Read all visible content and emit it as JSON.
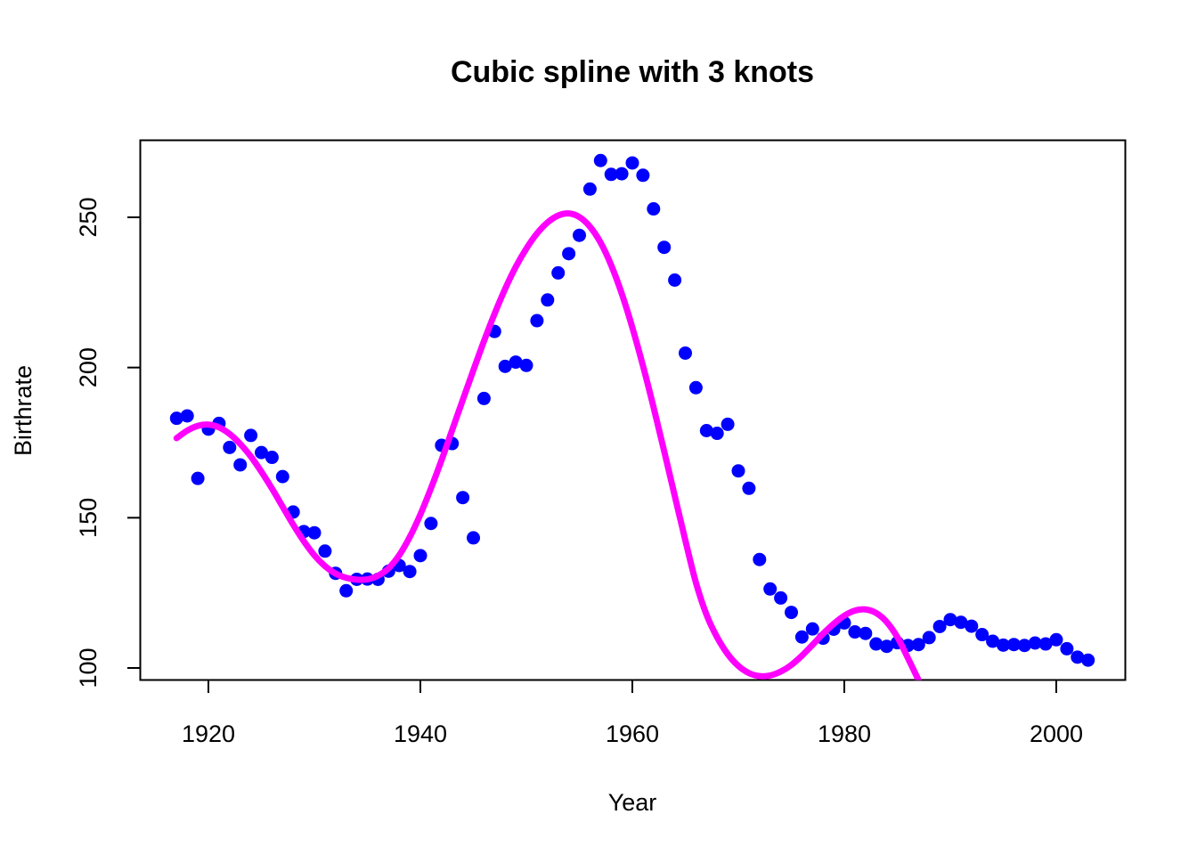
{
  "chart_data": {
    "type": "scatter",
    "title": "Cubic spline with 3 knots",
    "xlabel": "Year",
    "ylabel": "Birthrate",
    "xlim": [
      1917,
      2003
    ],
    "ylim": [
      100,
      268
    ],
    "x_ticks": [
      1920,
      1940,
      1960,
      1980,
      2000
    ],
    "y_ticks": [
      100,
      150,
      200,
      250
    ],
    "x_tick_labels": [
      "1920",
      "1940",
      "1960",
      "1980",
      "2000"
    ],
    "y_tick_labels": [
      "100",
      "150",
      "200",
      "250"
    ],
    "grid": false,
    "legend": "none",
    "series": [
      {
        "type": "scatter",
        "color": "#0000ff",
        "points": [
          [
            1917,
            183.1
          ],
          [
            1918,
            183.9
          ],
          [
            1919,
            163.1
          ],
          [
            1920,
            179.5
          ],
          [
            1921,
            181.4
          ],
          [
            1922,
            173.4
          ],
          [
            1923,
            167.6
          ],
          [
            1924,
            177.4
          ],
          [
            1925,
            171.7
          ],
          [
            1926,
            170.1
          ],
          [
            1927,
            163.7
          ],
          [
            1928,
            151.9
          ],
          [
            1929,
            145.4
          ],
          [
            1930,
            145.0
          ],
          [
            1931,
            138.9
          ],
          [
            1932,
            131.5
          ],
          [
            1933,
            125.7
          ],
          [
            1934,
            129.5
          ],
          [
            1935,
            129.6
          ],
          [
            1936,
            129.5
          ],
          [
            1937,
            132.2
          ],
          [
            1938,
            134.1
          ],
          [
            1939,
            132.1
          ],
          [
            1940,
            137.4
          ],
          [
            1941,
            148.1
          ],
          [
            1942,
            174.1
          ],
          [
            1943,
            174.7
          ],
          [
            1944,
            156.7
          ],
          [
            1945,
            143.3
          ],
          [
            1946,
            189.7
          ],
          [
            1947,
            212.0
          ],
          [
            1948,
            200.4
          ],
          [
            1949,
            201.8
          ],
          [
            1950,
            200.7
          ],
          [
            1951,
            215.6
          ],
          [
            1952,
            222.5
          ],
          [
            1953,
            231.5
          ],
          [
            1954,
            237.9
          ],
          [
            1955,
            244.0
          ],
          [
            1956,
            259.4
          ],
          [
            1957,
            268.9
          ],
          [
            1958,
            264.3
          ],
          [
            1959,
            264.5
          ],
          [
            1960,
            268.1
          ],
          [
            1961,
            264.0
          ],
          [
            1962,
            252.8
          ],
          [
            1963,
            240.0
          ],
          [
            1964,
            229.1
          ],
          [
            1965,
            204.8
          ],
          [
            1966,
            193.3
          ],
          [
            1967,
            179.0
          ],
          [
            1968,
            178.1
          ],
          [
            1969,
            181.1
          ],
          [
            1970,
            165.6
          ],
          [
            1971,
            159.8
          ],
          [
            1972,
            136.1
          ],
          [
            1973,
            126.3
          ],
          [
            1974,
            123.3
          ],
          [
            1975,
            118.5
          ],
          [
            1976,
            110.3
          ],
          [
            1977,
            113.0
          ],
          [
            1978,
            109.9
          ],
          [
            1979,
            112.9
          ],
          [
            1980,
            115.0
          ],
          [
            1981,
            112.0
          ],
          [
            1982,
            111.5
          ],
          [
            1983,
            108.0
          ],
          [
            1984,
            107.2
          ],
          [
            1985,
            108.4
          ],
          [
            1986,
            107.5
          ],
          [
            1987,
            107.8
          ],
          [
            1988,
            110.1
          ],
          [
            1989,
            113.8
          ],
          [
            1990,
            116.1
          ],
          [
            1991,
            115.2
          ],
          [
            1992,
            113.9
          ],
          [
            1993,
            111.1
          ],
          [
            1994,
            108.9
          ],
          [
            1995,
            107.6
          ],
          [
            1996,
            107.8
          ],
          [
            1997,
            107.5
          ],
          [
            1998,
            108.3
          ],
          [
            1999,
            108.0
          ],
          [
            2000,
            109.4
          ],
          [
            2001,
            106.4
          ],
          [
            2002,
            103.6
          ],
          [
            2003,
            102.6
          ]
        ]
      },
      {
        "type": "line",
        "color": "#ff00ff",
        "points": [
          [
            1917,
            176.5
          ],
          [
            1918,
            179.0
          ],
          [
            1919,
            180.6
          ],
          [
            1920,
            181.0
          ],
          [
            1921,
            180.1
          ],
          [
            1922,
            177.9
          ],
          [
            1923,
            174.6
          ],
          [
            1924,
            170.4
          ],
          [
            1925,
            165.3
          ],
          [
            1926,
            159.7
          ],
          [
            1927,
            153.7
          ],
          [
            1928,
            147.7
          ],
          [
            1929,
            142.2
          ],
          [
            1930,
            137.5
          ],
          [
            1931,
            133.9
          ],
          [
            1932,
            131.4
          ],
          [
            1933,
            130.0
          ],
          [
            1934,
            129.4
          ],
          [
            1935,
            129.5
          ],
          [
            1936,
            130.7
          ],
          [
            1937,
            133.2
          ],
          [
            1938,
            137.5
          ],
          [
            1939,
            143.6
          ],
          [
            1940,
            151.1
          ],
          [
            1941,
            159.8
          ],
          [
            1942,
            169.2
          ],
          [
            1943,
            179.2
          ],
          [
            1944,
            189.2
          ],
          [
            1945,
            199.1
          ],
          [
            1946,
            208.8
          ],
          [
            1947,
            217.9
          ],
          [
            1948,
            226.2
          ],
          [
            1949,
            233.5
          ],
          [
            1950,
            239.6
          ],
          [
            1951,
            244.6
          ],
          [
            1952,
            248.3
          ],
          [
            1953,
            250.6
          ],
          [
            1954,
            251.3
          ],
          [
            1955,
            250.1
          ],
          [
            1956,
            246.9
          ],
          [
            1957,
            241.6
          ],
          [
            1958,
            234.1
          ],
          [
            1959,
            224.6
          ],
          [
            1960,
            213.3
          ],
          [
            1961,
            200.6
          ],
          [
            1962,
            186.8
          ],
          [
            1963,
            172.2
          ],
          [
            1964,
            157.3
          ],
          [
            1965,
            142.5
          ],
          [
            1966,
            128.4
          ],
          [
            1967,
            117.7
          ],
          [
            1968,
            110.2
          ],
          [
            1969,
            104.6
          ],
          [
            1970,
            100.7
          ],
          [
            1971,
            98.3
          ],
          [
            1972,
            97.3
          ],
          [
            1973,
            97.5
          ],
          [
            1974,
            98.8
          ],
          [
            1975,
            101.0
          ],
          [
            1976,
            104.1
          ],
          [
            1977,
            107.7
          ],
          [
            1978,
            111.4
          ],
          [
            1979,
            114.7
          ],
          [
            1980,
            117.4
          ],
          [
            1981,
            119.1
          ],
          [
            1982,
            119.5
          ],
          [
            1983,
            118.3
          ],
          [
            1984,
            115.3
          ],
          [
            1985,
            110.3
          ],
          [
            1986,
            103.3
          ],
          [
            1987,
            96.0
          ]
        ]
      }
    ]
  }
}
